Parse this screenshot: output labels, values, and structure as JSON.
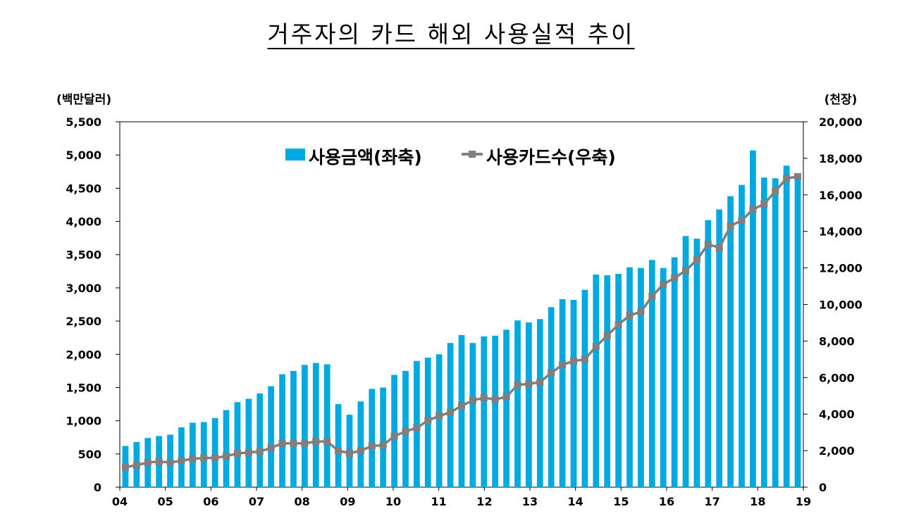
{
  "chart_data": {
    "type": "bar",
    "title": "거주자의 카드 해외 사용실적 추이",
    "x_tick_labels": [
      "04",
      "05",
      "06",
      "07",
      "08",
      "09",
      "10",
      "11",
      "12",
      "13",
      "14",
      "15",
      "16",
      "17",
      "18",
      "19"
    ],
    "left_axis": {
      "unit_label": "(백만달러)",
      "ylim": [
        0,
        5500
      ],
      "ticks": [
        "0",
        "500",
        "1,000",
        "1,500",
        "2,000",
        "2,500",
        "3,000",
        "3,500",
        "4,000",
        "4,500",
        "5,000",
        "5,500"
      ]
    },
    "right_axis": {
      "unit_label": "(천장)",
      "ylim": [
        0,
        20000
      ],
      "ticks": [
        "0",
        "2,000",
        "4,000",
        "6,000",
        "8,000",
        "10,000",
        "12,000",
        "14,000",
        "16,000",
        "18,000",
        "20,000"
      ]
    },
    "colors": {
      "bar": "#00A9E0",
      "line": "#7F7F7F"
    },
    "legend_position": "top-center",
    "series": [
      {
        "name": "사용금액(좌축)",
        "type": "bar",
        "axis": "left",
        "values": [
          620,
          680,
          740,
          770,
          790,
          900,
          970,
          980,
          1040,
          1160,
          1280,
          1330,
          1410,
          1520,
          1700,
          1750,
          1840,
          1870,
          1850,
          1250,
          1090,
          1290,
          1480,
          1500,
          1690,
          1750,
          1900,
          1950,
          2000,
          2170,
          2290,
          2170,
          2270,
          2280,
          2370,
          2510,
          2480,
          2530,
          2710,
          2830,
          2820,
          2970,
          3200,
          3190,
          3210,
          3310,
          3300,
          3420,
          3300,
          3460,
          3780,
          3740,
          4020,
          4180,
          4380,
          4550,
          5070,
          4660,
          4650,
          4840,
          4700
        ]
      },
      {
        "name": "사용카드수(우축)",
        "type": "line",
        "axis": "right",
        "values": [
          1100,
          1200,
          1350,
          1400,
          1350,
          1450,
          1550,
          1600,
          1600,
          1700,
          1850,
          1900,
          1950,
          2150,
          2400,
          2400,
          2400,
          2500,
          2500,
          2000,
          1850,
          2000,
          2250,
          2300,
          2800,
          3050,
          3250,
          3650,
          3900,
          4100,
          4450,
          4750,
          4900,
          4800,
          4950,
          5600,
          5650,
          5750,
          6250,
          6700,
          6900,
          7000,
          7700,
          8300,
          8900,
          9400,
          9600,
          10450,
          11100,
          11450,
          11850,
          12450,
          13300,
          13100,
          14300,
          14600,
          15200,
          15500,
          16200,
          16900,
          17000
        ]
      }
    ]
  }
}
